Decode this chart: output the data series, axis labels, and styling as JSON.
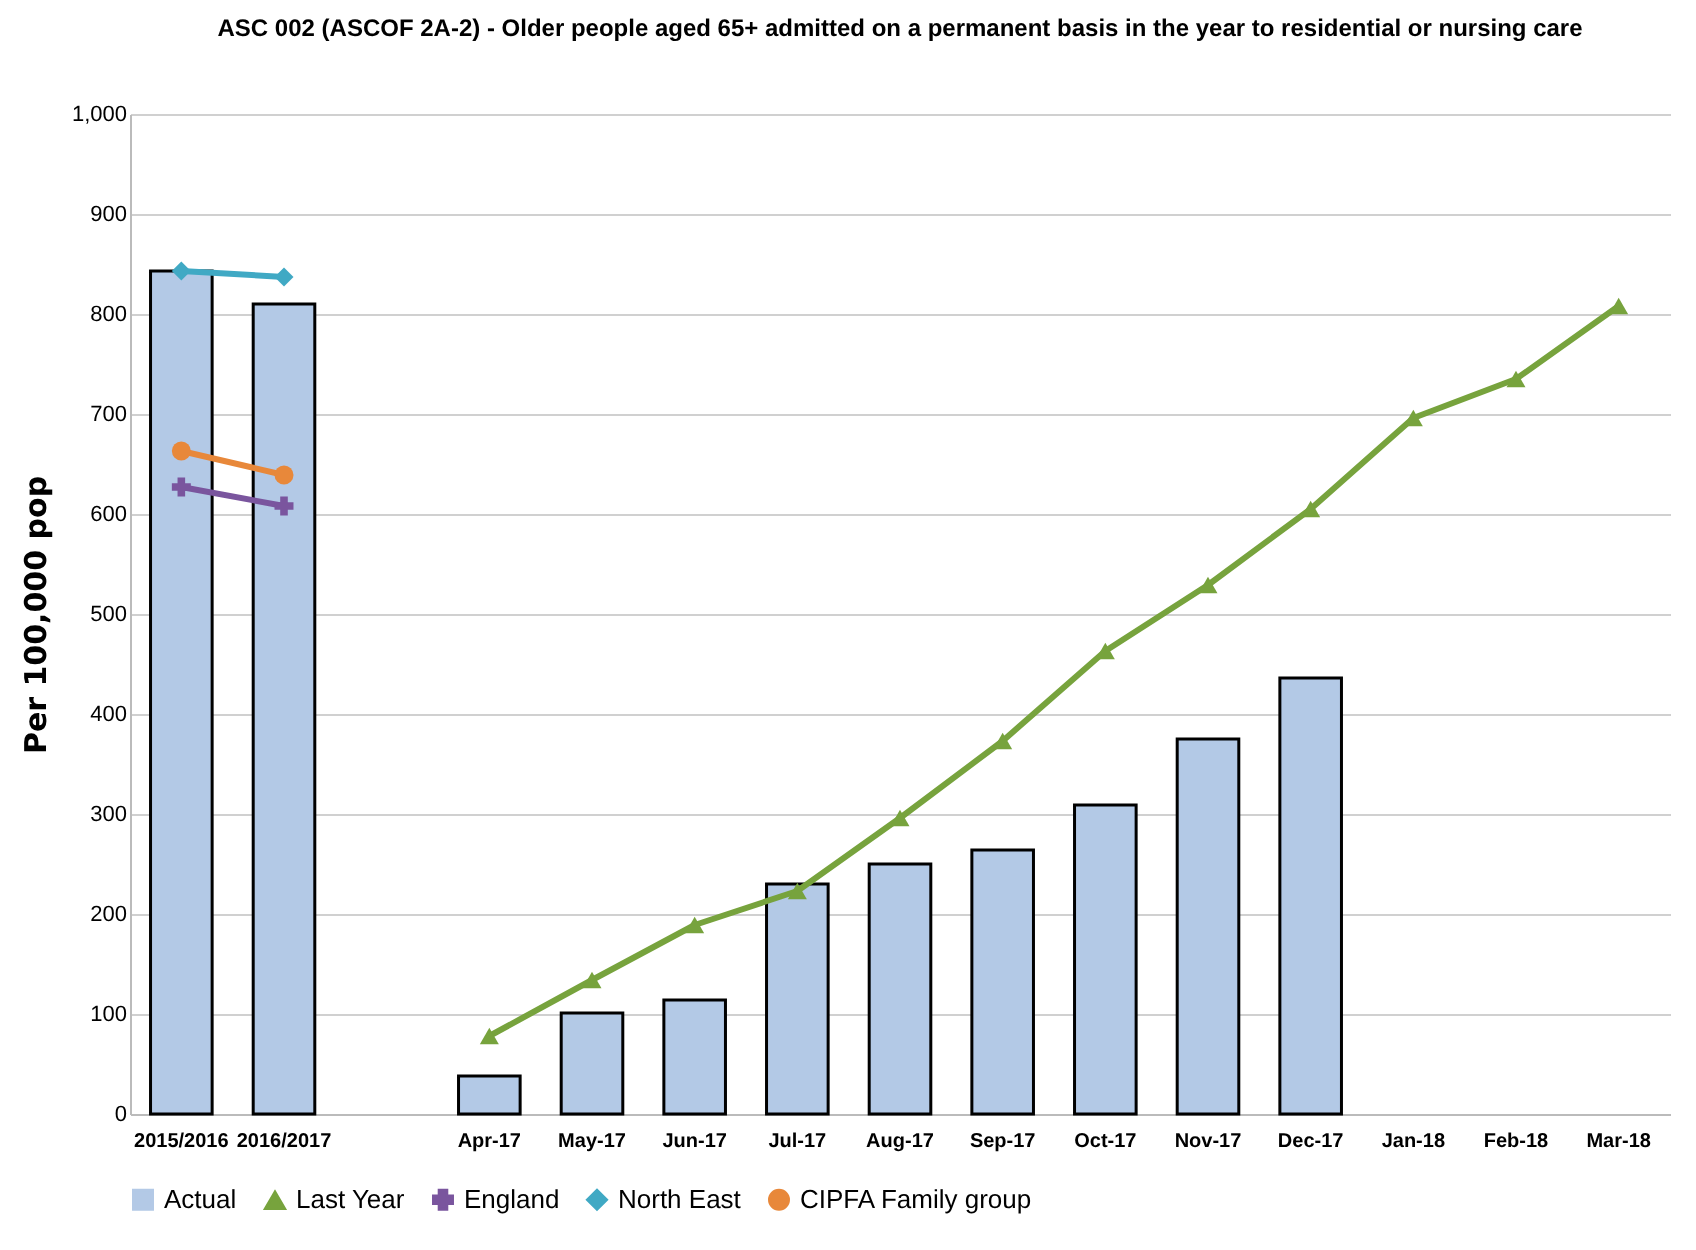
{
  "chart_data": {
    "type": "bar",
    "title": "ASC 002 (ASCOF 2A-2) - Older people aged 65+ admitted on a permanent basis in the year to residential or nursing care",
    "ylabel": "Per 100,000 pop",
    "categories": [
      "2015/2016",
      "2016/2017",
      null,
      "Apr-17",
      "May-17",
      "Jun-17",
      "Jul-17",
      "Aug-17",
      "Sep-17",
      "Oct-17",
      "Nov-17",
      "Dec-17",
      "Jan-18",
      "Feb-18",
      "Mar-18"
    ],
    "series": [
      {
        "name": "Actual",
        "color": "#b3c9e6",
        "values": [
          843,
          810,
          null,
          38,
          101,
          114,
          230,
          250,
          264,
          309,
          375,
          436,
          null,
          null,
          null
        ]
      },
      {
        "name": "Last Year",
        "type": "line",
        "marker": "triangle",
        "color": "#77a33d",
        "values": [
          null,
          null,
          null,
          78,
          134,
          189,
          223,
          296,
          373,
          463,
          529,
          605,
          696,
          735,
          808
        ]
      },
      {
        "name": "England",
        "type": "line",
        "marker": "cross",
        "color": "#7a559e",
        "values": [
          627,
          608,
          null,
          null,
          null,
          null,
          null,
          null,
          null,
          null,
          null,
          null,
          null,
          null,
          null
        ]
      },
      {
        "name": "North East",
        "type": "line",
        "marker": "diamond",
        "color": "#40a9c4",
        "values": [
          843,
          837,
          null,
          null,
          null,
          null,
          null,
          null,
          null,
          null,
          null,
          null,
          null,
          null,
          null
        ]
      },
      {
        "name": "CIPFA Family group",
        "type": "line",
        "marker": "circle",
        "color": "#e8883a",
        "values": [
          663,
          639,
          null,
          null,
          null,
          null,
          null,
          null,
          null,
          null,
          null,
          null,
          null,
          null,
          null
        ]
      }
    ],
    "ylim": [
      0,
      1000
    ],
    "yticks": [
      0,
      100,
      200,
      300,
      400,
      500,
      600,
      700,
      800,
      900,
      {
        "value": 1000,
        "label": "1,000"
      }
    ],
    "grid": "y",
    "legend": "bottom"
  }
}
